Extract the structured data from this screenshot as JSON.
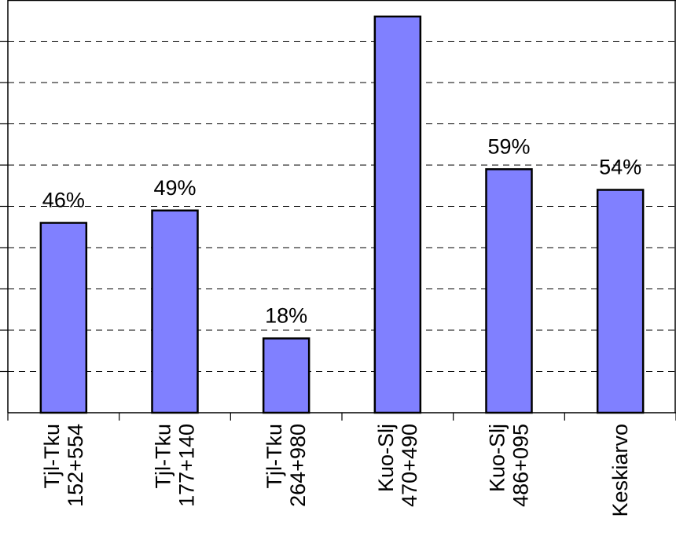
{
  "chart_data": {
    "type": "bar",
    "categories": [
      [
        "Tjl-Tku",
        "152+554"
      ],
      [
        "Tjl-Tku",
        "177+140"
      ],
      [
        "Tjl-Tku",
        "264+980"
      ],
      [
        "Kuo-Slj",
        "470+490"
      ],
      [
        "Kuo-Slj",
        "486+095"
      ],
      [
        "Keskiarvo"
      ]
    ],
    "values": [
      46,
      49,
      18,
      96,
      59,
      54
    ],
    "data_labels": [
      "46%",
      "49%",
      "18%",
      "",
      "59%",
      "54%"
    ],
    "title": "",
    "xlabel": "",
    "ylabel": "",
    "ylim": [
      0,
      100
    ],
    "grid": true,
    "grid_style": "dashed",
    "bar_color": "#8080ff",
    "bar_edge_color": "#000000"
  }
}
